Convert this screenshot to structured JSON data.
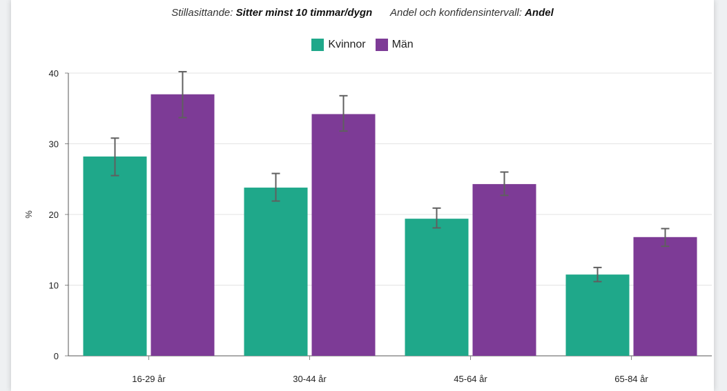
{
  "header": {
    "filter1_label": "Stillasittande:",
    "filter1_value": "Sitter minst 10 timmar/dygn",
    "filter2_label": "Andel och konfidensintervall:",
    "filter2_value": "Andel"
  },
  "colors": {
    "kvinnor": "#1fa88a",
    "man": "#7d3b96",
    "errorbar": "#5f5f5f",
    "grid": "#e3e3e3"
  },
  "chart_data": {
    "type": "bar",
    "categories": [
      "16-29 år",
      "30-44 år",
      "45-64 år",
      "65-84 år"
    ],
    "series": [
      {
        "name": "Kvinnor",
        "values": [
          28.2,
          23.8,
          19.4,
          11.5
        ],
        "ci_low": [
          25.5,
          21.9,
          18.1,
          10.5
        ],
        "ci_high": [
          30.8,
          25.8,
          20.9,
          12.5
        ]
      },
      {
        "name": "Män",
        "values": [
          37.0,
          34.2,
          24.3,
          16.8
        ],
        "ci_low": [
          33.7,
          31.8,
          22.7,
          15.5
        ],
        "ci_high": [
          40.2,
          36.8,
          26.0,
          18.0
        ]
      }
    ],
    "ylabel": "%",
    "ylim": [
      0,
      40
    ],
    "yticks": [
      0,
      10,
      20,
      30,
      40
    ],
    "grid": true,
    "legend": "top-center"
  }
}
